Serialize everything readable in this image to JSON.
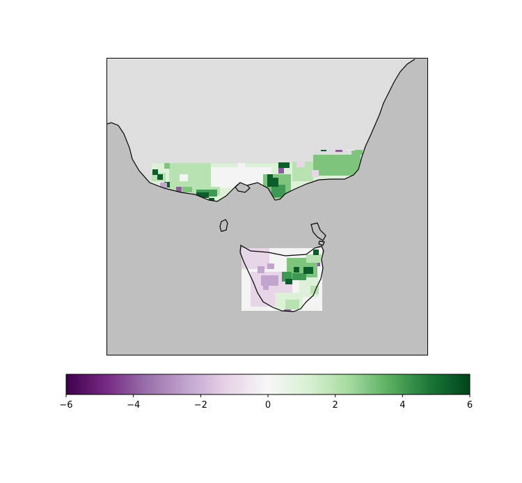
{
  "map": {
    "region": "South-eastern Australia and Tasmania",
    "ocean_color": "#dedede",
    "land_outside_data_color": "#bfbfbf",
    "coastline_color": "#000000",
    "frame_color": "#000000"
  },
  "colorbar": {
    "colormap": "PRGn",
    "vmin": -6,
    "vmax": 6,
    "ticks": [
      "−6",
      "−4",
      "−2",
      "0",
      "2",
      "4",
      "6"
    ],
    "tick_values": [
      -6,
      -4,
      -2,
      0,
      2,
      4,
      6
    ],
    "stops": [
      "#40004b",
      "#762a83",
      "#9970ab",
      "#c2a5cf",
      "#e7d4e8",
      "#f7f7f7",
      "#d9f0d3",
      "#a6dba0",
      "#5aae61",
      "#1b7837",
      "#00441b"
    ]
  },
  "cell_colors": {
    "dark_green": "#0b5d2a",
    "mid_green": "#3e9a52",
    "green": "#7fc47c",
    "light_green": "#b9e2b2",
    "pale_green": "#ddf1d8",
    "white": "#f4f4f4",
    "pale_purple": "#e6d6e8",
    "light_purple": "#c2a5cf",
    "purple": "#8e5aa0",
    "dark_purple": "#6a2c7e"
  }
}
